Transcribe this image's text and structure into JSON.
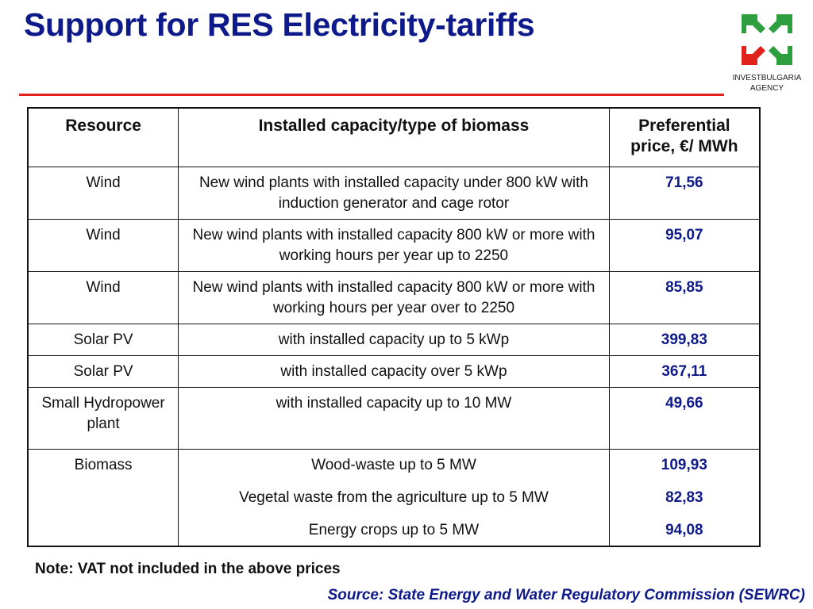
{
  "title": "Support for RES Electricity-tariffs",
  "logo": {
    "line1": "INVESTBULGARIA",
    "line2": "AGENCY"
  },
  "table": {
    "headers": [
      "Resource",
      "Installed capacity/type of biomass",
      "Preferential price, €/ MWh"
    ],
    "rows": [
      {
        "resource": "Wind",
        "capacity": "New wind plants with installed capacity under 800 kW with induction generator and cage rotor",
        "price": "71,56"
      },
      {
        "resource": "Wind",
        "capacity": "New wind plants with installed capacity 800 kW or more  with working hours per year up to 2250",
        "price": "95,07"
      },
      {
        "resource": "Wind",
        "capacity": "New wind plants with installed capacity 800 kW or more  with working hours per year over to 2250",
        "price": "85,85"
      },
      {
        "resource": "Solar PV",
        "capacity": "with installed capacity up to 5 kWp",
        "price": "399,83"
      },
      {
        "resource": "Solar PV",
        "capacity": "with installed capacity over 5 kWp",
        "price": "367,11"
      },
      {
        "resource": "Small Hydropower plant",
        "capacity": "with installed capacity up to 10 MW",
        "price": "49,66"
      }
    ],
    "biomass": {
      "resource": "Biomass",
      "items": [
        {
          "capacity": "Wood-waste up to 5 MW",
          "price": "109,93"
        },
        {
          "capacity": "Vegetal waste from the agriculture up to 5 MW",
          "price": "82,83"
        },
        {
          "capacity": "Energy crops up to 5 MW",
          "price": "94,08"
        }
      ]
    }
  },
  "note": "Note: VAT not included in the above prices",
  "source": "Source: State Energy and Water Regulatory Commission (SEWRC)",
  "colors": {
    "title": "#0e1a8a",
    "rule": "#e0221b",
    "logo_green": "#2e9e3e",
    "logo_red": "#e0221b"
  },
  "icons": [
    "investbulgaria-logo-icon"
  ]
}
